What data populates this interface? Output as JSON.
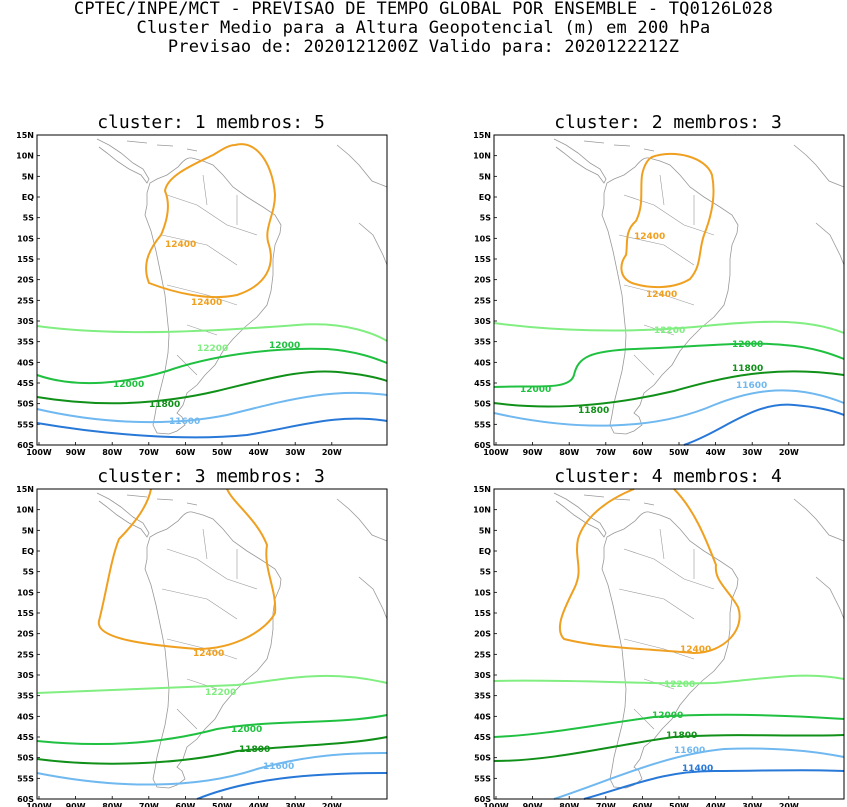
{
  "header": {
    "line1": "CPTEC/INPE/MCT - PREVISAO DE TEMPO GLOBAL POR ENSEMBLE - TQ0126L028",
    "line2": "Cluster Medio para a Altura Geopotencial (m) em 200 hPa",
    "line3": "Previsao de: 2020121200Z   Valido para: 2020122212Z"
  },
  "axes": {
    "lat_labels": [
      "15N",
      "10N",
      "5N",
      "EQ",
      "5S",
      "10S",
      "15S",
      "20S",
      "25S",
      "30S",
      "35S",
      "40S",
      "45S",
      "50S",
      "55S",
      "60S"
    ],
    "lon_labels": [
      "100W",
      "90W",
      "80W",
      "70W",
      "60W",
      "50W",
      "40W",
      "30W",
      "20W"
    ]
  },
  "colors": {
    "c12400": "#f0a020",
    "c12200": "#80ee80",
    "c12000": "#20c040",
    "c11800": "#109018",
    "c11600": "#70b8f0",
    "c11400": "#2878d8",
    "coast": "#999999"
  },
  "panels": [
    {
      "cluster_label": "cluster:",
      "cluster": "1",
      "members_label": "membros:",
      "members": "5",
      "contour_labels": {
        "c12400a": "12400",
        "c12400b": "12400",
        "c12200": "12200",
        "c12000a": "12000",
        "c12000b": "12000",
        "c11800": "11800",
        "c11600": "11600"
      }
    },
    {
      "cluster_label": "cluster:",
      "cluster": "2",
      "members_label": "membros:",
      "members": "3",
      "contour_labels": {
        "c12400a": "12400",
        "c12400b": "12400",
        "c12200": "12200",
        "c12000a": "12000",
        "c12000b": "12000",
        "c11800a": "11800",
        "c11800b": "11800",
        "c11600": "11600"
      }
    },
    {
      "cluster_label": "cluster:",
      "cluster": "3",
      "members_label": "membros:",
      "members": "3",
      "contour_labels": {
        "c12400": "12400",
        "c12200": "12200",
        "c12000": "12000",
        "c11800": "11800",
        "c11600": "11600"
      }
    },
    {
      "cluster_label": "cluster:",
      "cluster": "4",
      "members_label": "membros:",
      "members": "4",
      "contour_labels": {
        "c12400": "12400",
        "c12200": "12200",
        "c12000": "12000",
        "c11800": "11800",
        "c11600": "11600",
        "c11400": "11400"
      }
    }
  ]
}
